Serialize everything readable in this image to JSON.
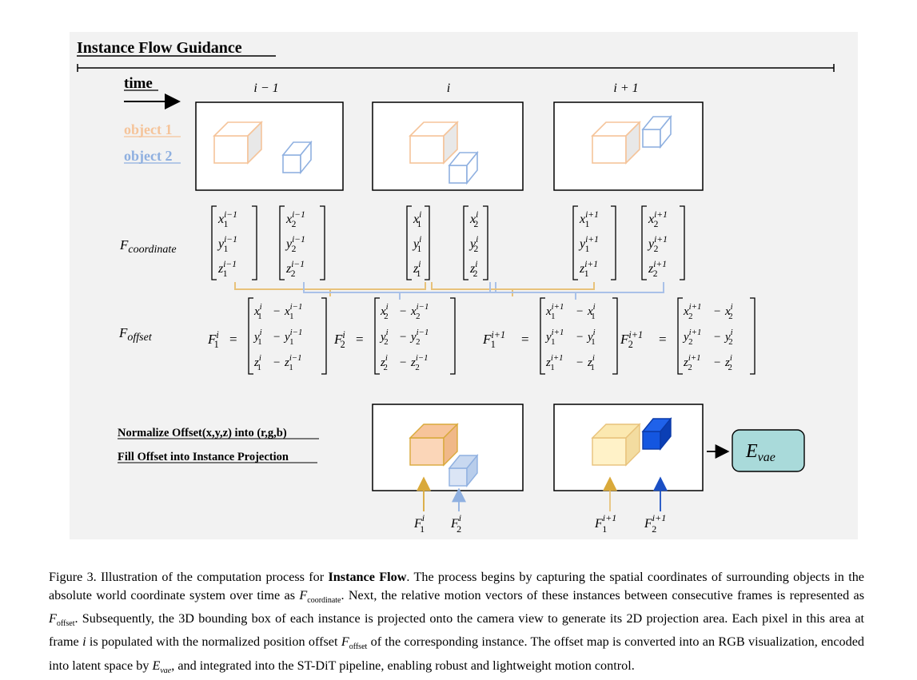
{
  "panel": {
    "title": "Instance Flow Guidance",
    "time_label": "time",
    "legend": [
      {
        "label": "object 1",
        "color": "#f5c49a"
      },
      {
        "label": "object 2",
        "color": "#8fb0e0"
      }
    ],
    "frames": [
      "i − 1",
      "i",
      "i + 1"
    ]
  },
  "coordinate_row": {
    "label": "F",
    "label_sub": "coordinate",
    "frames": [
      {
        "sup": "i−1",
        "objects": [
          "1",
          "2"
        ]
      },
      {
        "sup": "i",
        "objects": [
          "1",
          "2"
        ]
      },
      {
        "sup": "i+1",
        "objects": [
          "1",
          "2"
        ]
      }
    ]
  },
  "offset_row": {
    "label": "F",
    "label_sub": "offset",
    "eqs": [
      {
        "lhs": "F",
        "lhs_sub": "1",
        "lhs_sup": "i",
        "rows": [
          "x",
          "y",
          "z"
        ],
        "obj": "1",
        "cur": "i",
        "prev": "i−1"
      },
      {
        "lhs": "F",
        "lhs_sub": "2",
        "lhs_sup": "i",
        "rows": [
          "x",
          "y",
          "z"
        ],
        "obj": "2",
        "cur": "i",
        "prev": "i−1"
      },
      {
        "lhs": "F",
        "lhs_sub": "1",
        "lhs_sup": "i+1",
        "rows": [
          "x",
          "y",
          "z"
        ],
        "obj": "1",
        "cur": "i+1",
        "prev": "i"
      },
      {
        "lhs": "F",
        "lhs_sub": "2",
        "lhs_sup": "i+1",
        "rows": [
          "x",
          "y",
          "z"
        ],
        "obj": "2",
        "cur": "i+1",
        "prev": "i"
      }
    ]
  },
  "projection": {
    "step1": "Normalize Offset(x,y,z) into (r,g,b)",
    "step2": "Fill Offset into Instance Projection",
    "arrows_frame_i": [
      {
        "name": "F",
        "sub": "1",
        "sup": "i"
      },
      {
        "name": "F",
        "sub": "2",
        "sup": "i"
      }
    ],
    "arrows_frame_i1": [
      {
        "name": "F",
        "sub": "1",
        "sup": "i+1"
      },
      {
        "name": "F",
        "sub": "2",
        "sup": "i+1"
      }
    ],
    "encoder": "E",
    "encoder_sub": "vae"
  },
  "colors": {
    "background": "#f2f2f2",
    "object1": "#f5c49a",
    "object2": "#8fb0e0",
    "gold_arrow": "#d9a93a",
    "blue_arrow": "#1a4fc4",
    "encoder_fill": "#a9dada",
    "bracket_gold": "#e8c27a",
    "bracket_blue": "#a9c1e8"
  },
  "caption": {
    "label": "Figure 3. Illustration of the computation process for ",
    "bold": "Instance Flow",
    "p1": ". The process begins by capturing the spatial coordinates of surrounding objects in the absolute world coordinate system over time as ",
    "fcoord": "F",
    "fcoord_sub": "coordinate",
    "p2": ". Next, the relative motion vectors of these instances between consecutive frames is represented as ",
    "foff": "F",
    "foff_sub": "offset",
    "p3": ". Subsequently, the 3D bounding box of each instance is projected onto the camera view to generate its 2D projection area. Each pixel in this area at frame ",
    "frame_i": "i",
    "p4": " is populated with the normalized position offset ",
    "foff2": "F",
    "foff2_sub": "offset",
    "p5": " of the corresponding instance. The offset map is converted into an RGB visualization, encoded into latent space by ",
    "evae": "E",
    "evae_sub": "vae",
    "p6": ", and integrated into the ST-DiT pipeline, enabling robust and lightweight motion control."
  }
}
